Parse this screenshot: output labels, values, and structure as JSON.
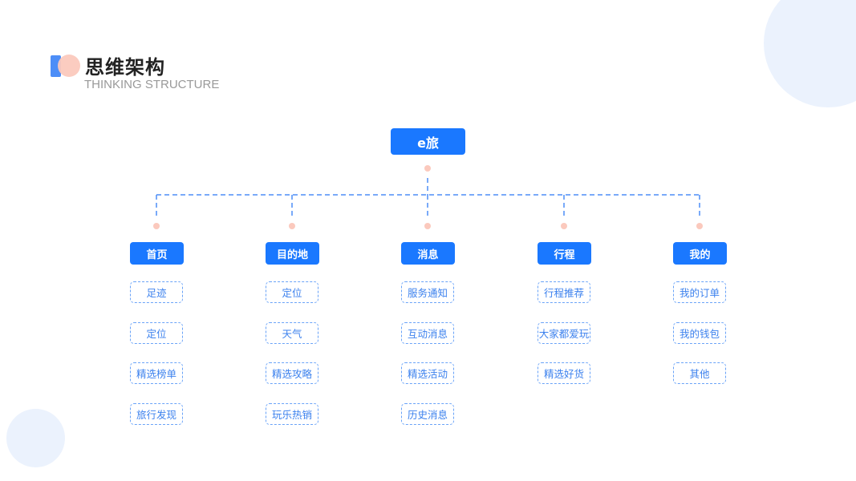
{
  "header": {
    "title": "思维架构",
    "subtitle": "THINKING STRUCTURE"
  },
  "colors": {
    "primary": "#1a78ff",
    "dash": "#4d8ef7",
    "dot": "#fbc9bd",
    "bg_circle": "#ebf2fd"
  },
  "root": {
    "label": "e旅"
  },
  "categories": [
    {
      "label": "首页",
      "items": [
        "足迹",
        "定位",
        "精选榜单",
        "旅行发现"
      ]
    },
    {
      "label": "目的地",
      "items": [
        "定位",
        "天气",
        "精选攻略",
        "玩乐热销"
      ]
    },
    {
      "label": "消息",
      "items": [
        "服务通知",
        "互动消息",
        "精选活动",
        "历史消息"
      ]
    },
    {
      "label": "行程",
      "items": [
        "行程推荐",
        "大家都爱玩",
        "精选好货"
      ]
    },
    {
      "label": "我的",
      "items": [
        "我的订单",
        "我的钱包",
        "其他"
      ]
    }
  ]
}
